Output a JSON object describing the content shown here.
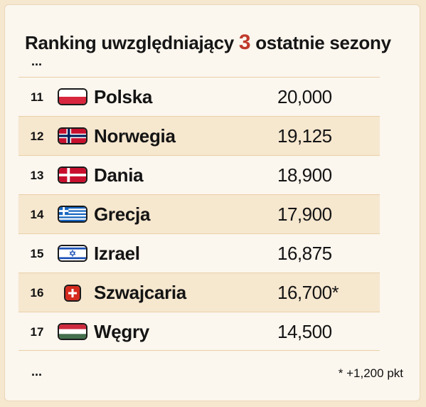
{
  "title": {
    "prefix": "Ranking uwzględniający",
    "number": "3",
    "suffix": "ostatnie sezony"
  },
  "ellipsis": "...",
  "rows": [
    {
      "rank": "11",
      "country": "Polska",
      "points": "20,000",
      "flag": "poland-flag-icon"
    },
    {
      "rank": "12",
      "country": "Norwegia",
      "points": "19,125",
      "flag": "norway-flag-icon"
    },
    {
      "rank": "13",
      "country": "Dania",
      "points": "18,900",
      "flag": "denmark-flag-icon"
    },
    {
      "rank": "14",
      "country": "Grecja",
      "points": "17,900",
      "flag": "greece-flag-icon"
    },
    {
      "rank": "15",
      "country": "Izrael",
      "points": "16,875",
      "flag": "israel-flag-icon"
    },
    {
      "rank": "16",
      "country": "Szwajcaria",
      "points": "16,700*",
      "flag": "switzerland-flag-icon"
    },
    {
      "rank": "17",
      "country": "Węgry",
      "points": "14,500",
      "flag": "hungary-flag-icon"
    }
  ],
  "footnote": "* +1,200 pkt",
  "colors": {
    "accent": "#c0392b",
    "background": "#f6e7cf",
    "card": "#fbf6ee",
    "row_shade": "#f6e7cf",
    "divider": "#ead1a8"
  }
}
